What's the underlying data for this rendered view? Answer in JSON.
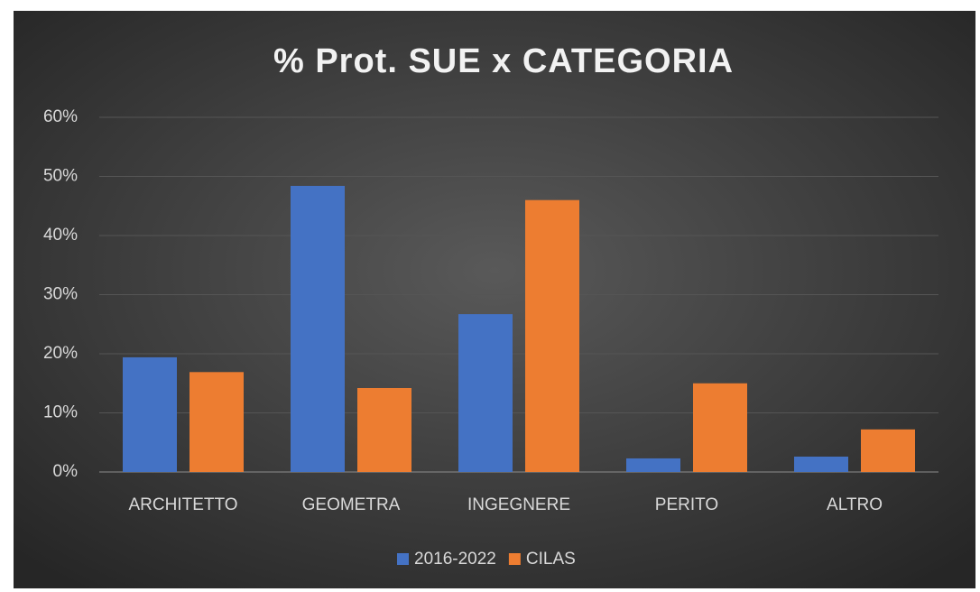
{
  "chart_data": {
    "type": "bar",
    "title": "% Prot. SUE x CATEGORIA",
    "categories": [
      "ARCHITETTO",
      "GEOMETRA",
      "INGEGNERE",
      "PERITO",
      "ALTRO"
    ],
    "series": [
      {
        "name": "2016-2022",
        "color": "#4472c4",
        "values": [
          19.4,
          48.4,
          26.7,
          2.3,
          2.6
        ]
      },
      {
        "name": "CILAS",
        "color": "#ed7d31",
        "values": [
          16.9,
          14.2,
          46.0,
          15.0,
          7.2
        ]
      }
    ],
    "ylim": [
      0,
      60
    ],
    "yticks": [
      {
        "value": 0,
        "label": "0%"
      },
      {
        "value": 10,
        "label": "10%"
      },
      {
        "value": 20,
        "label": "20%"
      },
      {
        "value": 30,
        "label": "30%"
      },
      {
        "value": 40,
        "label": "40%"
      },
      {
        "value": 50,
        "label": "50%"
      },
      {
        "value": 60,
        "label": "60%"
      }
    ],
    "grid": true,
    "legend": "bottom"
  }
}
